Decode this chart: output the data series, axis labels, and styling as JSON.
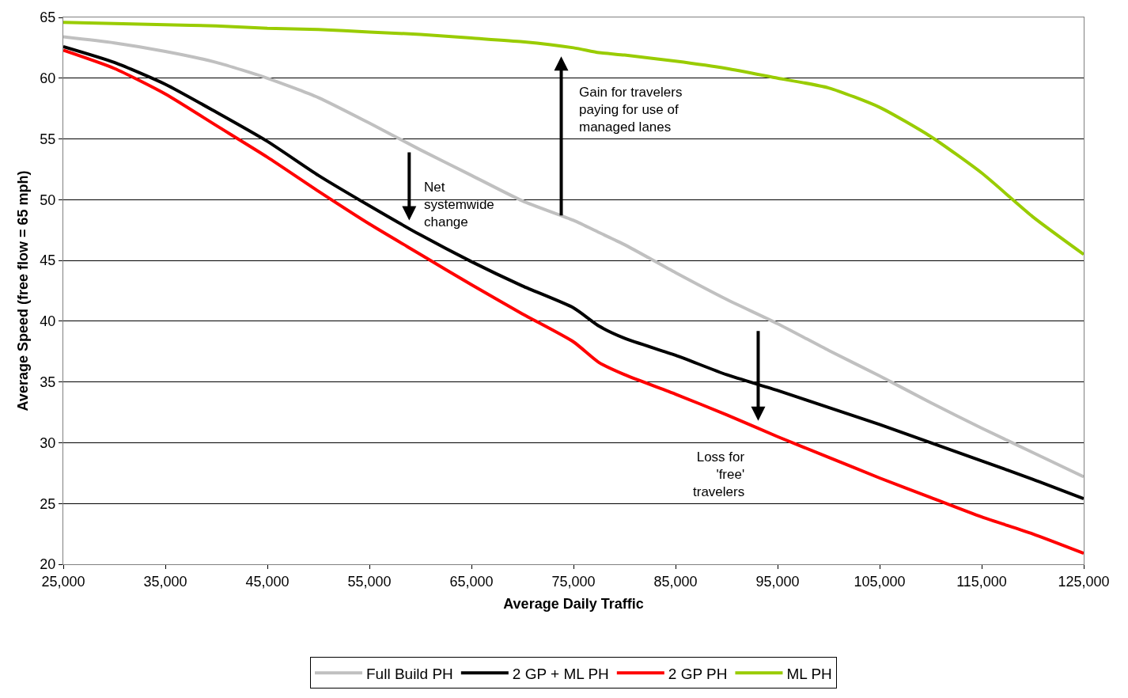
{
  "chart_data": {
    "type": "line",
    "xlabel": "Average Daily Traffic",
    "ylabel": "Average Speed (free flow = 65 mph)",
    "x": [
      25000,
      30000,
      35000,
      40000,
      45000,
      50000,
      55000,
      60000,
      65000,
      70000,
      75000,
      77500,
      80000,
      85000,
      90000,
      95000,
      100000,
      105000,
      110000,
      115000,
      120000,
      125000
    ],
    "series": [
      {
        "name": "Full Build PH",
        "color": "#c0c0c0",
        "values": [
          63.4,
          62.9,
          62.2,
          61.3,
          60.0,
          58.4,
          56.3,
          54.1,
          52.0,
          49.9,
          48.3,
          47.3,
          46.3,
          44.0,
          41.8,
          39.8,
          37.6,
          35.5,
          33.3,
          31.2,
          29.2,
          27.2
        ]
      },
      {
        "name": "2 GP + ML PH",
        "color": "#000000",
        "values": [
          62.6,
          61.3,
          59.5,
          57.2,
          54.8,
          52.0,
          49.5,
          47.1,
          44.9,
          42.9,
          41.1,
          39.6,
          38.6,
          37.2,
          35.6,
          34.3,
          32.9,
          31.5,
          30.0,
          28.5,
          27.0,
          25.4
        ]
      },
      {
        "name": "2 GP PH",
        "color": "#ff0000",
        "values": [
          62.3,
          60.8,
          58.7,
          56.1,
          53.5,
          50.7,
          48.0,
          45.5,
          43.0,
          40.6,
          38.3,
          36.6,
          35.6,
          34.0,
          32.3,
          30.5,
          28.8,
          27.1,
          25.5,
          23.9,
          22.5,
          20.9
        ]
      },
      {
        "name": "ML PH",
        "color": "#99cc00",
        "values": [
          64.6,
          64.5,
          64.4,
          64.3,
          64.1,
          64.0,
          63.8,
          63.6,
          63.3,
          63.0,
          62.5,
          62.1,
          61.9,
          61.4,
          60.8,
          60.0,
          59.2,
          57.6,
          55.2,
          52.2,
          48.6,
          45.5
        ]
      }
    ],
    "xlim": [
      25000,
      125000
    ],
    "xticks": [
      {
        "value": 25000,
        "label": "25,000"
      },
      {
        "value": 35000,
        "label": "35,000"
      },
      {
        "value": 45000,
        "label": "45,000"
      },
      {
        "value": 55000,
        "label": "55,000"
      },
      {
        "value": 65000,
        "label": "65,000"
      },
      {
        "value": 75000,
        "label": "75,000"
      },
      {
        "value": 85000,
        "label": "85,000"
      },
      {
        "value": 95000,
        "label": "95,000"
      },
      {
        "value": 105000,
        "label": "105,000"
      },
      {
        "value": 115000,
        "label": "115,000"
      },
      {
        "value": 125000,
        "label": "125,000"
      }
    ],
    "ylim": [
      20,
      65
    ],
    "yticks": [
      20,
      25,
      30,
      35,
      40,
      45,
      50,
      55,
      60,
      65
    ],
    "grid": "y",
    "legend": "bottom",
    "marker": "none",
    "line_style": "solid",
    "annotations": [
      "Net\nsystemwide\nchange",
      "Gain for travelers\npaying for use of\nmanaged lanes",
      "Loss for\n'free'\ntravelers"
    ]
  }
}
